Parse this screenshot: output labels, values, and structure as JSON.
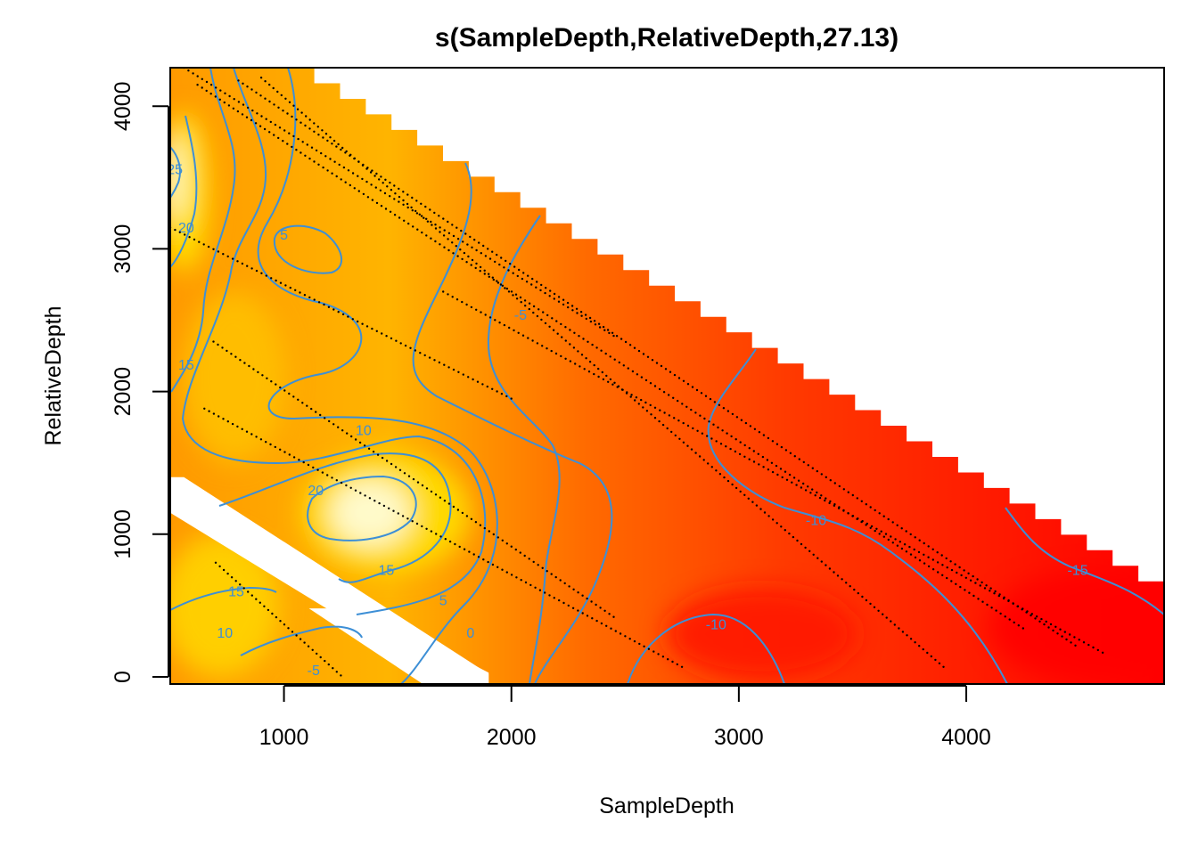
{
  "chart_data": {
    "type": "heatmap",
    "title": "s(SampleDepth,RelativeDepth,27.13)",
    "xlabel": "SampleDepth",
    "ylabel": "RelativeDepth",
    "xlim": [
      500,
      4870
    ],
    "ylim": [
      -50,
      4270
    ],
    "x_ticks": [
      1000,
      2000,
      3000,
      4000
    ],
    "x_tick_labels": [
      "1000",
      "2000",
      "3000",
      "4000"
    ],
    "y_ticks": [
      0,
      1000,
      2000,
      3000,
      4000
    ],
    "y_tick_labels": [
      "0",
      "1000",
      "2000",
      "3000",
      "4000"
    ],
    "color_scale": {
      "name": "heat",
      "low_color": "#ff0000",
      "mid_color": "#ff9a00",
      "high_color": "#fffde0",
      "range": [
        -20,
        30
      ]
    },
    "domain_upper_boundary": [
      [
        500,
        4270
      ],
      [
        1020,
        4270
      ],
      [
        4870,
        560
      ]
    ],
    "contour_levels": [
      -15,
      -10,
      -5,
      0,
      5,
      10,
      15,
      20,
      25
    ],
    "contour_labels": [
      {
        "text": "-15",
        "x": 4490,
        "y": 740
      },
      {
        "text": "-10",
        "x": 3340,
        "y": 1090
      },
      {
        "text": "-10",
        "x": 2900,
        "y": 360
      },
      {
        "text": "-5",
        "x": 2040,
        "y": 2530
      },
      {
        "text": "0",
        "x": 1820,
        "y": 300
      },
      {
        "text": "5",
        "x": 1700,
        "y": 530
      },
      {
        "text": "5",
        "x": 1000,
        "y": 3090
      },
      {
        "text": "-5",
        "x": 1130,
        "y": 40
      },
      {
        "text": "10",
        "x": 1350,
        "y": 1720
      },
      {
        "text": "10",
        "x": 740,
        "y": 300
      },
      {
        "text": "15",
        "x": 1450,
        "y": 740
      },
      {
        "text": "15",
        "x": 790,
        "y": 590
      },
      {
        "text": "15",
        "x": 570,
        "y": 2180
      },
      {
        "text": "20",
        "x": 1140,
        "y": 1300
      },
      {
        "text": "20",
        "x": 570,
        "y": 3140
      },
      {
        "text": "25",
        "x": 520,
        "y": 3550
      }
    ],
    "observation_tracks": [
      {
        "x": [
          560,
          2450
        ],
        "y": [
          4270,
          2390
        ]
      },
      {
        "x": [
          620,
          4250
        ],
        "y": [
          4150,
          340
        ]
      },
      {
        "x": [
          800,
          4480
        ],
        "y": [
          4180,
          220
        ]
      },
      {
        "x": [
          900,
          3900
        ],
        "y": [
          4200,
          70
        ]
      },
      {
        "x": [
          1700,
          4600
        ],
        "y": [
          2700,
          170
        ]
      },
      {
        "x": [
          500,
          2000
        ],
        "y": [
          3150,
          1950
        ]
      },
      {
        "x": [
          650,
          2750
        ],
        "y": [
          1880,
          70
        ]
      },
      {
        "x": [
          690,
          2450
        ],
        "y": [
          2350,
          420
        ]
      },
      {
        "x": [
          700,
          1250
        ],
        "y": [
          800,
          10
        ]
      }
    ]
  }
}
